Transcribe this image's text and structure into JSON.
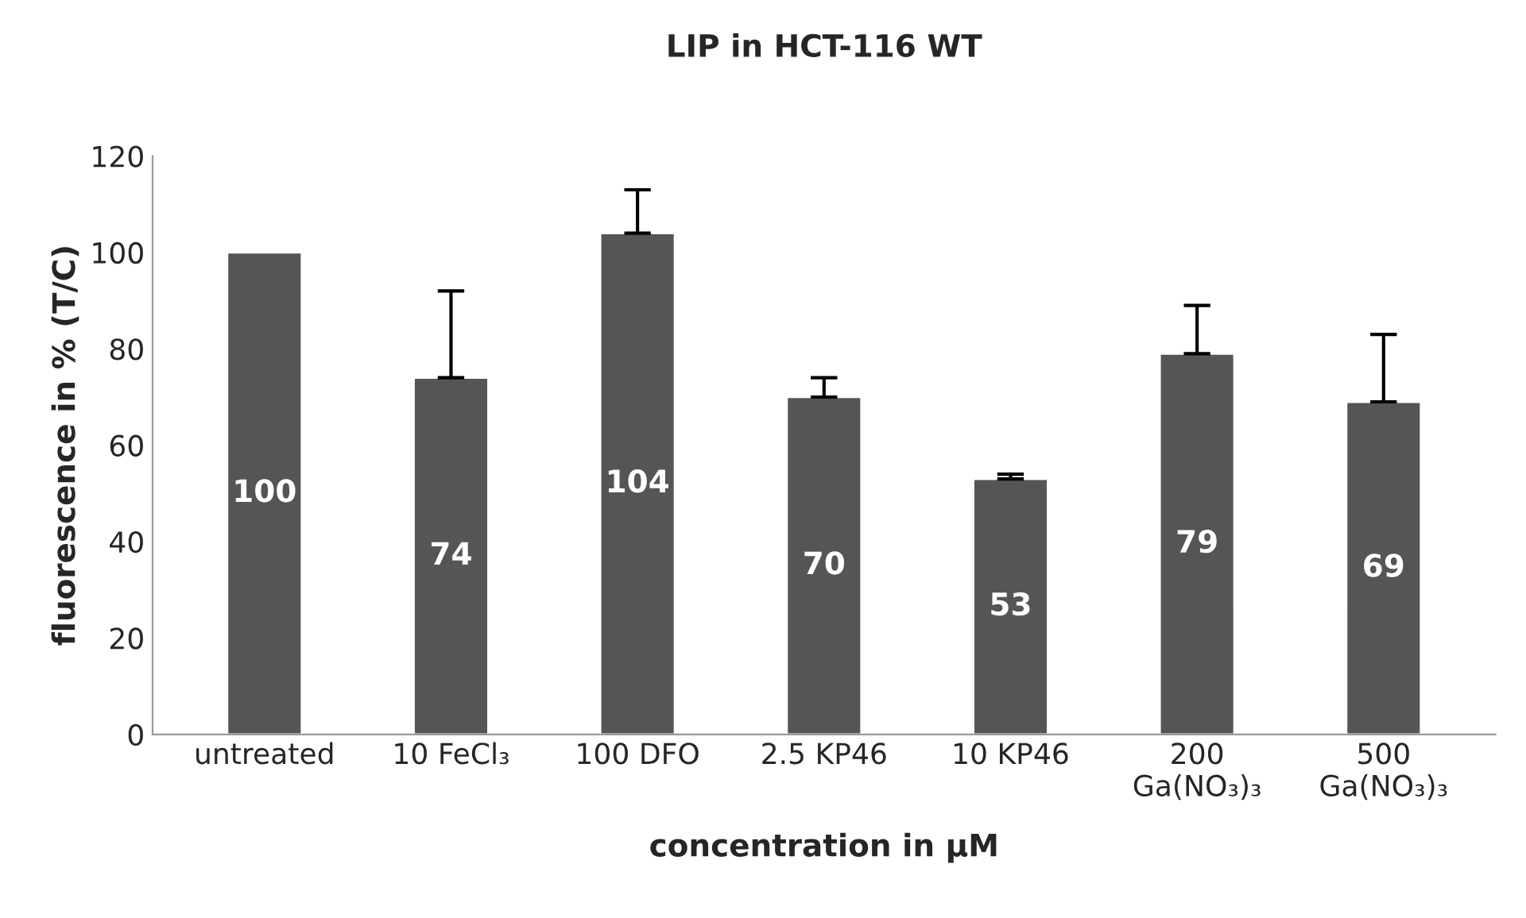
{
  "chart_data": {
    "type": "bar",
    "title": "LIP in HCT-116 WT",
    "xlabel": "concentration in µM",
    "ylabel": "fluorescence in % (T/C)",
    "categories": [
      "untreated",
      "10 FeCl₃",
      "100 DFO",
      "2.5 KP46",
      "10 KP46",
      "200\nGa(NO₃)₃",
      "500\nGa(NO₃)₃"
    ],
    "values": [
      100,
      74,
      104,
      70,
      53,
      79,
      69
    ],
    "errors": [
      null,
      [
        74,
        92
      ],
      [
        104,
        113
      ],
      [
        70,
        74
      ],
      [
        53,
        54
      ],
      [
        79,
        89
      ],
      [
        69,
        83
      ]
    ],
    "color": "#555555",
    "ylim": [
      0,
      120
    ],
    "yticks": [
      0,
      20,
      40,
      60,
      80,
      100,
      120
    ],
    "grid": false,
    "data_labels": true
  }
}
